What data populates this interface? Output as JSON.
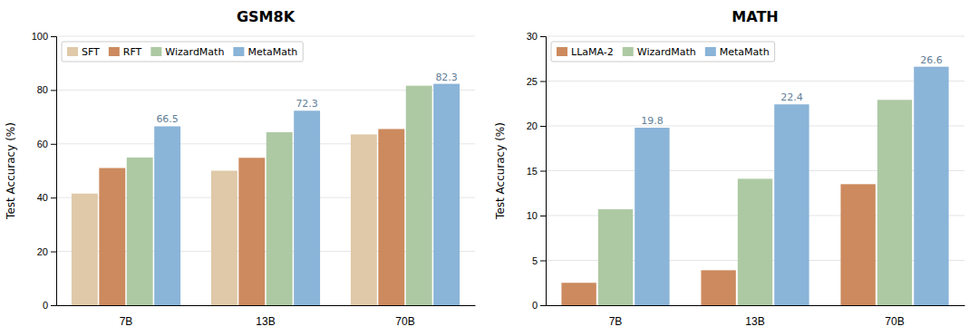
{
  "chart_data": [
    {
      "type": "bar",
      "title": "GSM8K",
      "ylabel": "Test Accuracy (%)",
      "categories": [
        "7B",
        "13B",
        "70B"
      ],
      "series": [
        {
          "name": "SFT",
          "color": "#dfc9a8",
          "values": [
            41.5,
            50.0,
            63.5
          ]
        },
        {
          "name": "RFT",
          "color": "#cc8a5e",
          "values": [
            51.0,
            54.8,
            65.5
          ]
        },
        {
          "name": "WizardMath",
          "color": "#adc9a3",
          "values": [
            54.9,
            64.3,
            81.6
          ]
        },
        {
          "name": "MetaMath",
          "color": "#8ab4d8",
          "values": [
            66.5,
            72.3,
            82.3
          ],
          "data_labels": true
        }
      ],
      "ylim": [
        0,
        100
      ],
      "yticks": [
        0,
        20,
        40,
        60,
        80,
        100
      ],
      "grid": true,
      "legend": "upper left"
    },
    {
      "type": "bar",
      "title": "MATH",
      "ylabel": "Test Accuracy (%)",
      "categories": [
        "7B",
        "13B",
        "70B"
      ],
      "series": [
        {
          "name": "LLaMA-2",
          "color": "#cc8a5e",
          "values": [
            2.5,
            3.9,
            13.5
          ]
        },
        {
          "name": "WizardMath",
          "color": "#adc9a3",
          "values": [
            10.7,
            14.1,
            22.9
          ]
        },
        {
          "name": "MetaMath",
          "color": "#8ab4d8",
          "values": [
            19.8,
            22.4,
            26.6
          ],
          "data_labels": true
        }
      ],
      "ylim": [
        0,
        30
      ],
      "yticks": [
        0,
        5,
        10,
        15,
        20,
        25,
        30
      ],
      "grid": true,
      "legend": "upper left"
    }
  ]
}
